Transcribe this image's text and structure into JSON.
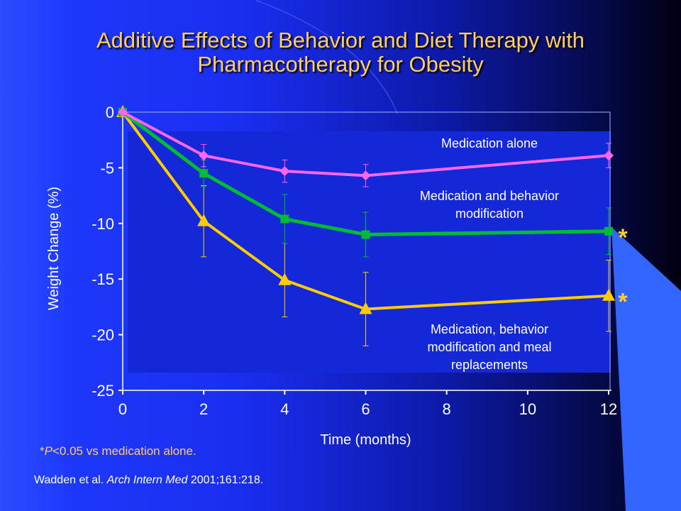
{
  "title_line1": "Additive Effects of Behavior and Diet Therapy with",
  "title_line2": "Pharmacotherapy for Obesity",
  "footnote_symbol": "*",
  "footnote_p": "P",
  "footnote_rest": "<0.05 vs medication alone.",
  "citation_authors": "Wadden et al. ",
  "citation_journal": "Arch Intern Med",
  "citation_ref": " 2001;161:218.",
  "colors": {
    "medication_alone": "#ff66ee",
    "medication_behavior": "#00bb33",
    "medication_behavior_meal": "#ffcc00",
    "plot_fill": "#1428d8",
    "title": "#ffcc66"
  },
  "chart_data": {
    "type": "line",
    "xlabel": "Time (months)",
    "ylabel": "Weight Change (%)",
    "xlim": [
      0,
      12
    ],
    "ylim": [
      -25,
      0
    ],
    "xticks": [
      0,
      2,
      4,
      6,
      8,
      10,
      12
    ],
    "yticks": [
      0,
      -5,
      -10,
      -15,
      -20,
      -25
    ],
    "grid": false,
    "series": [
      {
        "name": "Medication alone",
        "marker": "diamond",
        "x": [
          0,
          2,
          4,
          6,
          12
        ],
        "values": [
          0,
          -3.9,
          -5.3,
          -5.7,
          -3.9
        ],
        "error": [
          0,
          1.0,
          1.0,
          1.0,
          1.1
        ],
        "annotation": [
          "Medication alone"
        ]
      },
      {
        "name": "Medication and behavior modification",
        "marker": "square",
        "x": [
          0,
          2,
          4,
          6,
          12
        ],
        "values": [
          0,
          -5.5,
          -9.6,
          -11.0,
          -10.7
        ],
        "error": [
          0,
          1.2,
          2.2,
          2.0,
          2.1
        ],
        "annotation": [
          "Medication and behavior",
          "modification"
        ],
        "significance": "*"
      },
      {
        "name": "Medication, behavior modification and meal replacements",
        "marker": "triangle",
        "x": [
          0,
          2,
          4,
          6,
          12
        ],
        "values": [
          0,
          -9.8,
          -15.1,
          -17.7,
          -16.5
        ],
        "error": [
          0,
          3.2,
          3.3,
          3.3,
          3.2
        ],
        "annotation": [
          "Medication, behavior",
          "modification and meal",
          "replacements"
        ],
        "significance": "*"
      }
    ]
  }
}
